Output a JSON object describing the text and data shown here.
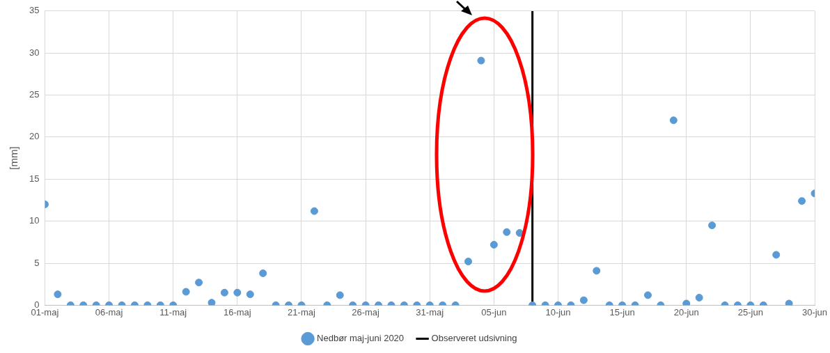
{
  "chart_data": {
    "type": "scatter",
    "ylabel": "[mm]",
    "x": [
      "2020-05-01",
      "2020-05-02",
      "2020-05-03",
      "2020-05-04",
      "2020-05-05",
      "2020-05-06",
      "2020-05-07",
      "2020-05-08",
      "2020-05-09",
      "2020-05-10",
      "2020-05-11",
      "2020-05-12",
      "2020-05-13",
      "2020-05-14",
      "2020-05-15",
      "2020-05-16",
      "2020-05-17",
      "2020-05-18",
      "2020-05-19",
      "2020-05-20",
      "2020-05-21",
      "2020-05-22",
      "2020-05-23",
      "2020-05-24",
      "2020-05-25",
      "2020-05-26",
      "2020-05-27",
      "2020-05-28",
      "2020-05-29",
      "2020-05-30",
      "2020-05-31",
      "2020-06-01",
      "2020-06-02",
      "2020-06-03",
      "2020-06-04",
      "2020-06-05",
      "2020-06-06",
      "2020-06-07",
      "2020-06-08",
      "2020-06-09",
      "2020-06-10",
      "2020-06-11",
      "2020-06-12",
      "2020-06-13",
      "2020-06-14",
      "2020-06-15",
      "2020-06-16",
      "2020-06-17",
      "2020-06-18",
      "2020-06-19",
      "2020-06-20",
      "2020-06-21",
      "2020-06-22",
      "2020-06-23",
      "2020-06-24",
      "2020-06-25",
      "2020-06-26",
      "2020-06-27",
      "2020-06-28",
      "2020-06-29",
      "2020-06-30"
    ],
    "series": [
      {
        "name": "Nedbør maj-juni 2020",
        "color": "#5b9bd5",
        "values": [
          12.0,
          1.3,
          0,
          0,
          0,
          0,
          0,
          0,
          0,
          0,
          0,
          1.6,
          2.7,
          0.3,
          1.5,
          1.5,
          1.3,
          3.8,
          0,
          0,
          0,
          11.2,
          0,
          1.2,
          0,
          0,
          0,
          0,
          0,
          0,
          0,
          0,
          0,
          5.2,
          29.1,
          7.2,
          8.7,
          8.6,
          0,
          0,
          0,
          0,
          0.6,
          4.1,
          0,
          0,
          0,
          1.2,
          0,
          22.0,
          0.2,
          0.9,
          9.5,
          0,
          0,
          0,
          0,
          6.0,
          0.2,
          12.4,
          13.3
        ]
      }
    ],
    "xlim": [
      "2020-05-01",
      "2020-06-30"
    ],
    "xticks": [
      {
        "value": "2020-05-01",
        "label": "01-maj"
      },
      {
        "value": "2020-05-06",
        "label": "06-maj"
      },
      {
        "value": "2020-05-11",
        "label": "11-maj"
      },
      {
        "value": "2020-05-16",
        "label": "16-maj"
      },
      {
        "value": "2020-05-21",
        "label": "21-maj"
      },
      {
        "value": "2020-05-26",
        "label": "26-maj"
      },
      {
        "value": "2020-05-31",
        "label": "31-maj"
      },
      {
        "value": "2020-06-05",
        "label": "05-jun"
      },
      {
        "value": "2020-06-10",
        "label": "10-jun"
      },
      {
        "value": "2020-06-15",
        "label": "15-jun"
      },
      {
        "value": "2020-06-20",
        "label": "20-jun"
      },
      {
        "value": "2020-06-25",
        "label": "25-jun"
      },
      {
        "value": "2020-06-30",
        "label": "30-jun"
      }
    ],
    "ylim": [
      0,
      35
    ],
    "yticks": [
      0,
      5,
      10,
      15,
      20,
      25,
      30,
      35
    ],
    "ref_lines": [
      {
        "axis": "x",
        "value": "2020-06-08",
        "label": "Observeret udsivning",
        "color": "#000000",
        "line_style": "solid"
      }
    ],
    "grid": true,
    "legend": "bottom",
    "marker": "circle"
  }
}
